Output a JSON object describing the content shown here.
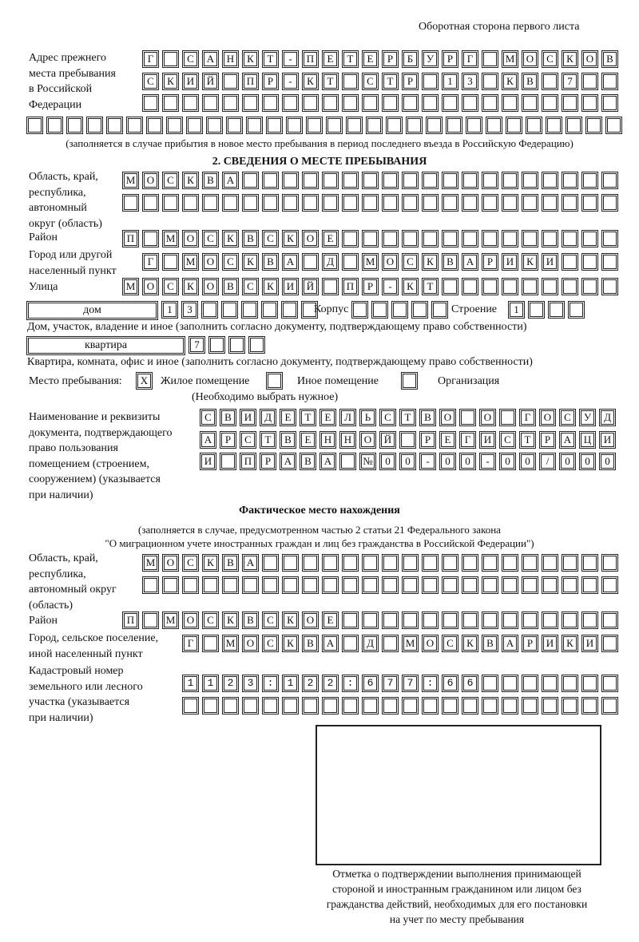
{
  "header": {
    "page_side": "Оборотная сторона первого листа"
  },
  "prev_address": {
    "label": "Адрес прежнего\nместа пребывания\nв Российской\nФедерации",
    "rows": [
      "Г САНКТ-ПЕТЕРБУРГ МОСКОВ",
      "СКИЙ ПР-КТ СТР 13 КВ 7",
      "",
      ""
    ],
    "note": "(заполняется в случае прибытия в новое место пребывания в период последнего въезда в Российскую Федерацию)"
  },
  "section2": {
    "title": "2. СВЕДЕНИЯ О МЕСТЕ ПРЕБЫВАНИЯ",
    "region_label": "Область, край,\nреспублика,\nавтономный\nокруг (область)",
    "region_rows": [
      "МОСКВА",
      ""
    ],
    "district_label": "Район",
    "district_row": "П МОСКВСКОЕ",
    "city_label": "Город или другой\nнаселенный пункт",
    "city_row": "Г МОСКВА Д МОСКВАРИКИ",
    "street_label": "Улица",
    "street_row": "МОСКОВСКИЙ ПР-КТ",
    "house_type": "дом",
    "house_row": "13",
    "korpus_label": "Корпус",
    "korpus_row": "",
    "building_label": "Строение",
    "building_row": "1",
    "house_note": "Дом, участок, владение и иное (заполнить согласно документу, подтверждающему право собственности)",
    "flat_type": "квартира",
    "flat_row": "7",
    "flat_note": "Квартира, комната, офис и иное (заполнить согласно документу, подтверждающему право собственности)",
    "stay_label": "Место пребывания:",
    "stay_options": [
      {
        "mark": "X",
        "label": "Жилое помещение"
      },
      {
        "mark": "",
        "label": "Иное помещение"
      },
      {
        "mark": "",
        "label": "Организация"
      }
    ],
    "stay_note": "(Необходимо выбрать нужное)",
    "doc_label": "Наименование и реквизиты\nдокумента, подтверждающего\nправо пользования\nпомещением (строением,\nсооружением) (указывается\nпри наличии)",
    "doc_rows": [
      "СВИДЕТЕЛЬСТВО О ГОСУД",
      "АРСТВЕННОЙ РЕГИСТРАЦИ",
      "И ПРАВА №00-00-00/000"
    ]
  },
  "actual": {
    "title": "Фактическое место нахождения",
    "note1": "(заполняется в случае, предусмотренном частью 2 статьи 21 Федерального закона",
    "note2": "\"О миграционном учете иностранных граждан и лиц без гражданства в Российской Федерации\")",
    "region_label": "Область, край,\nреспублика,\nавтономный округ\n(область)",
    "region_rows": [
      "МОСКВА",
      ""
    ],
    "district_label": "Район",
    "district_row": "П МОСКВСКОЕ",
    "city_label": "Город, сельское поселение,\nиной населенный пункт",
    "city_row": "Г МОСКВА Д МОСКВАРИКИ",
    "cadastral_label": "Кадастровый номер\nземельного или лесного\nучастка (указывается\nпри наличии)",
    "cadastral_rows": [
      "1123:122:677:66",
      ""
    ]
  },
  "stamp_caption": "Отметка о подтверждении выполнения принимающей\nстороной и иностранным гражданином или лицом без\nгражданства действий, необходимых для его постановки\nна учет по месту пребывания"
}
